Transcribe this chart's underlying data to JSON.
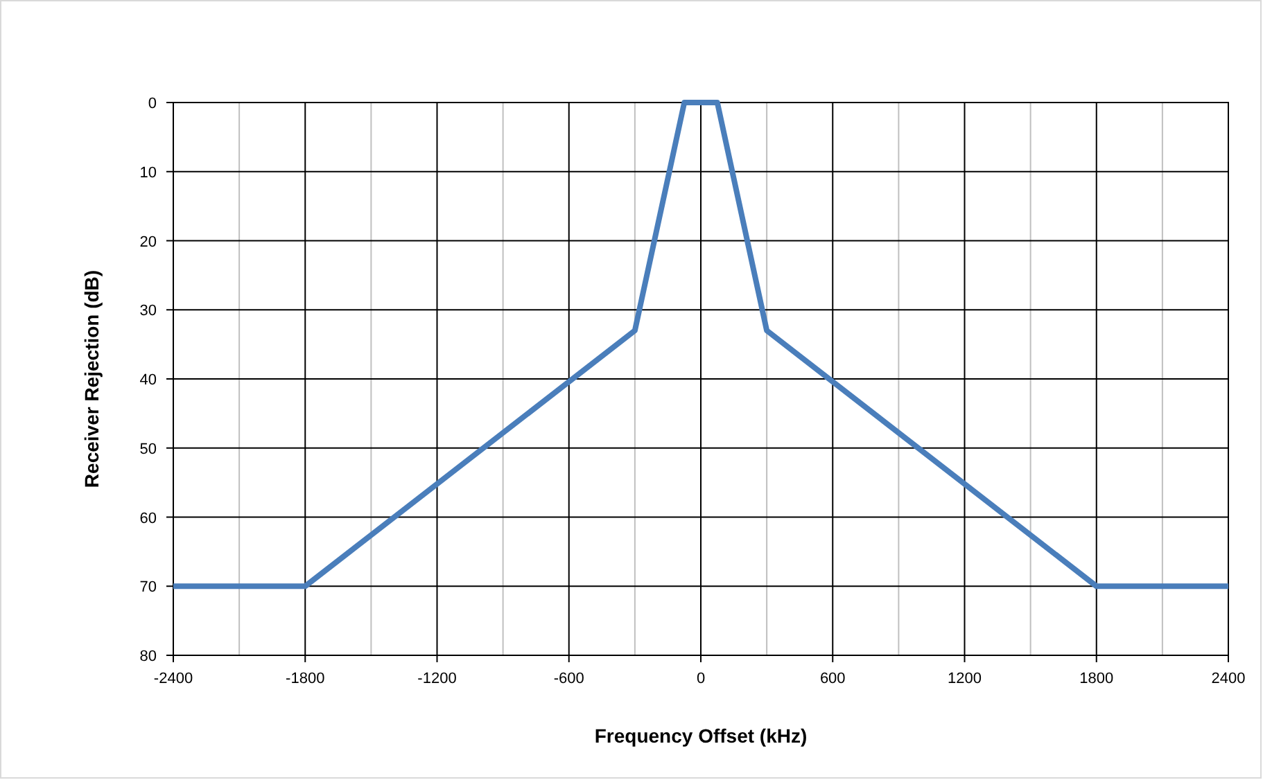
{
  "chart_data": {
    "type": "line",
    "xlabel": "Frequency Offset (kHz)",
    "ylabel": "Receiver Rejection (dB)",
    "x": [
      -2400,
      -1800,
      -300,
      -75,
      75,
      300,
      1800,
      2400
    ],
    "series": [
      {
        "color": "#4a7ebb",
        "values": [
          70,
          70,
          33,
          0,
          0,
          33,
          70,
          70
        ]
      }
    ],
    "xlim": [
      -2400,
      2400
    ],
    "xticks": [
      -2400,
      {
        "value": -2100,
        "label": null
      },
      -1800,
      {
        "value": -1500,
        "label": null
      },
      -1200,
      {
        "value": -900,
        "label": null
      },
      -600,
      {
        "value": -300,
        "label": null
      },
      0,
      {
        "value": 300,
        "label": null
      },
      600,
      {
        "value": 900,
        "label": null
      },
      1200,
      {
        "value": 1500,
        "label": null
      },
      1800,
      {
        "value": 2100,
        "label": null
      },
      2400
    ],
    "ylim": [
      80,
      0
    ],
    "yticks": [
      0,
      10,
      20,
      30,
      40,
      50,
      60,
      70,
      80
    ],
    "grid": true,
    "marker": "none",
    "line_style": "solid"
  }
}
